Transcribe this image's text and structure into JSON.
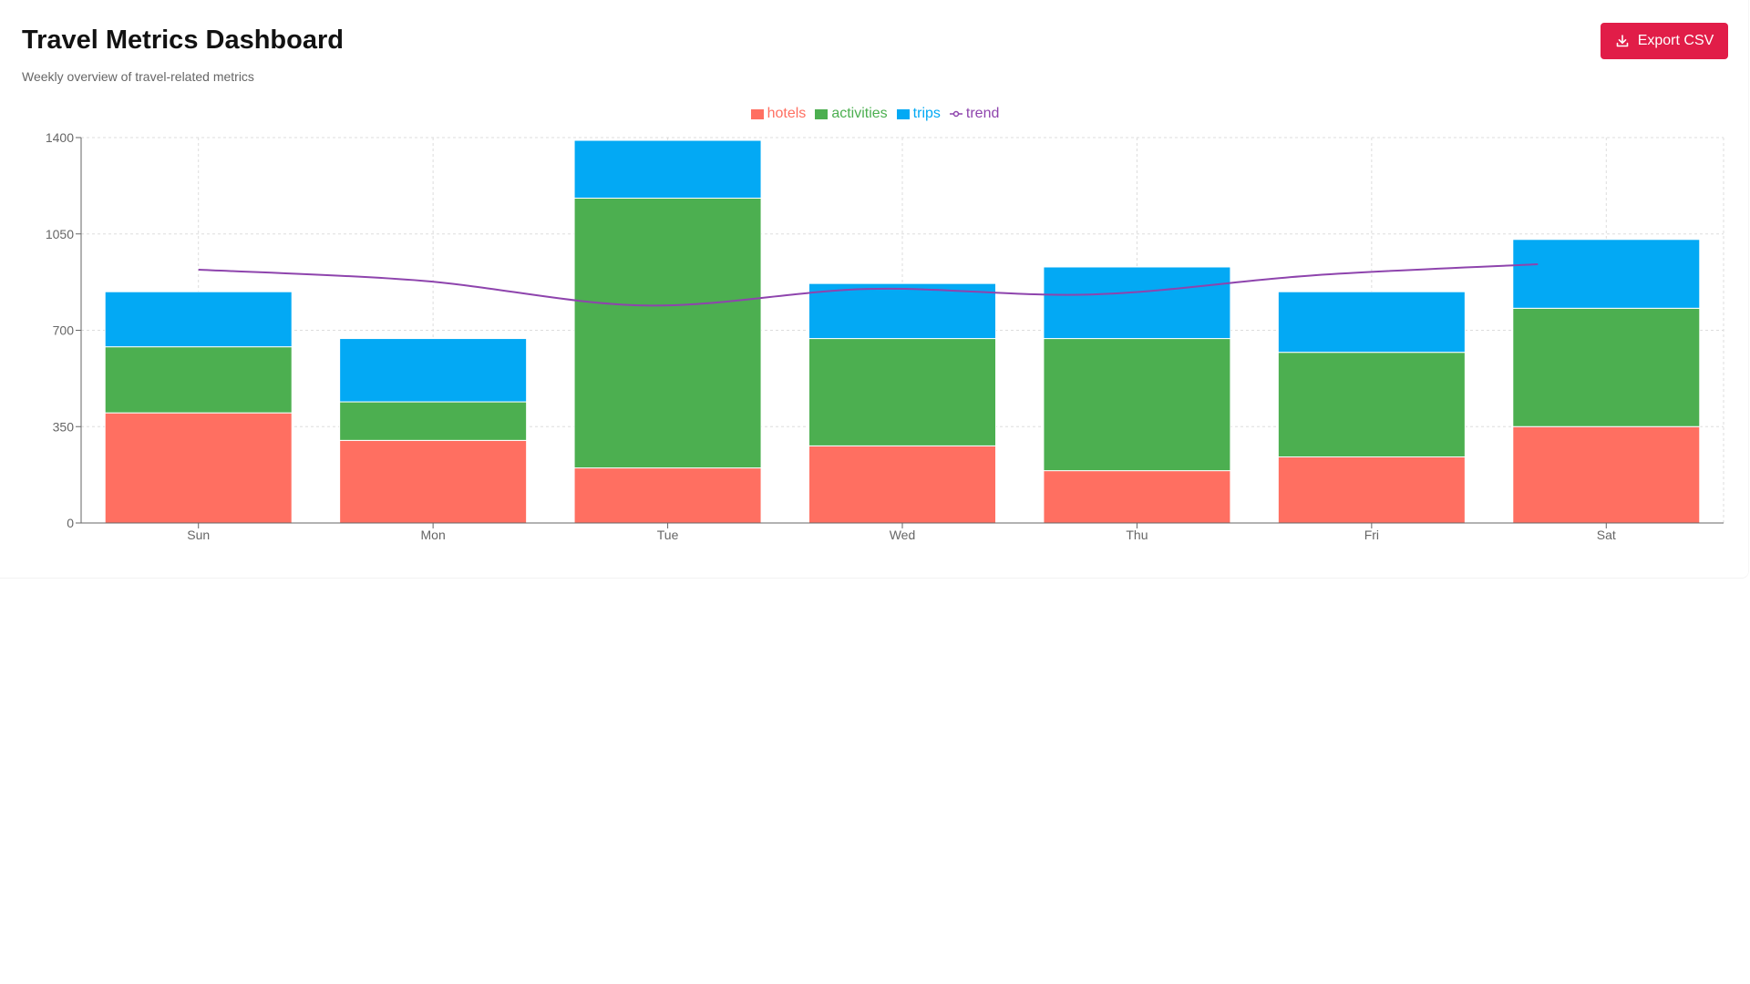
{
  "header": {
    "title": "Travel Metrics Dashboard",
    "subtitle": "Weekly overview of travel-related metrics"
  },
  "toolbar": {
    "export_label": "Export CSV",
    "export_icon": "download-icon",
    "accent": "#e11d48"
  },
  "legend": [
    {
      "key": "hotels",
      "label": "hotels",
      "color": "#ff6f61",
      "kind": "bar"
    },
    {
      "key": "activities",
      "label": "activities",
      "color": "#4caf50",
      "kind": "bar"
    },
    {
      "key": "trips",
      "label": "trips",
      "color": "#03a9f4",
      "kind": "bar"
    },
    {
      "key": "trend",
      "label": "trend",
      "color": "#8e44ad",
      "kind": "line"
    }
  ],
  "chart_data": {
    "type": "bar",
    "stacked": true,
    "categories": [
      "Sun",
      "Mon",
      "Tue",
      "Wed",
      "Thu",
      "Fri",
      "Sat"
    ],
    "series": [
      {
        "name": "hotels",
        "color": "#ff6f61",
        "values": [
          400,
          300,
          200,
          280,
          190,
          240,
          350
        ]
      },
      {
        "name": "activities",
        "color": "#4caf50",
        "values": [
          240,
          140,
          980,
          390,
          480,
          380,
          430
        ]
      },
      {
        "name": "trips",
        "color": "#03a9f4",
        "values": [
          200,
          230,
          210,
          200,
          260,
          220,
          250
        ]
      }
    ],
    "line_series": {
      "name": "trend",
      "color": "#8e44ad",
      "values": [
        920,
        880,
        790,
        850,
        830,
        900,
        940
      ],
      "points": 6
    },
    "ylim": [
      0,
      1400
    ],
    "yticks": [
      0,
      350,
      700,
      1050,
      1400
    ],
    "grid": true,
    "legend_position": "top-center",
    "xlabel": "",
    "ylabel": ""
  }
}
